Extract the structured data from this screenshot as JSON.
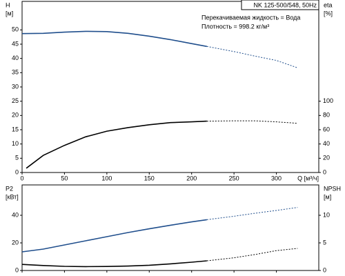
{
  "chart_data": [
    {
      "type": "line",
      "title": "NK 125-500/548, 50Hz",
      "annotations": [
        "Перекачиваемая жидкость = Вода",
        "Плотность = 998.2 кг/м³"
      ],
      "x_label": "Q [м³/ч]",
      "y_label": "H",
      "y_unit": "[м]",
      "y2_label": "eta",
      "y2_unit": "[%]",
      "xlim": [
        0,
        350
      ],
      "xticks": [
        0,
        50,
        100,
        150,
        200,
        250,
        300
      ],
      "ylim": [
        0,
        60
      ],
      "yticks": [
        0,
        5,
        10,
        15,
        20,
        25,
        30,
        35,
        40,
        45,
        50
      ],
      "y2lim": [
        0,
        240
      ],
      "y2ticks": [
        0,
        20,
        40,
        60,
        80,
        100
      ],
      "series": [
        {
          "color": "#1f4e8c",
          "dashed": false,
          "x": [
            0,
            25,
            50,
            75,
            100,
            125,
            150,
            175,
            200,
            218
          ],
          "values": [
            48.7,
            48.8,
            49.2,
            49.5,
            49.4,
            48.8,
            47.8,
            46.6,
            45.2,
            44.2
          ]
        },
        {
          "color": "#1f4e8c",
          "dashed": true,
          "x": [
            218,
            250,
            275,
            300,
            325
          ],
          "values": [
            44.2,
            42.4,
            40.8,
            39.3,
            36.7
          ]
        },
        {
          "axis": "y2",
          "color": "#000000",
          "dashed": false,
          "x": [
            5,
            25,
            50,
            75,
            100,
            125,
            150,
            175,
            200,
            218
          ],
          "values": [
            6,
            24,
            38,
            50,
            58,
            63,
            67,
            70,
            71,
            72
          ]
        },
        {
          "axis": "y2",
          "color": "#000000",
          "dashed": true,
          "x": [
            218,
            250,
            275,
            300,
            325
          ],
          "values": [
            72,
            72.5,
            72.5,
            71,
            69
          ]
        }
      ]
    },
    {
      "type": "line",
      "y_label": "P2",
      "y_unit": "[кВт]",
      "y2_label": "NPSH",
      "y2_unit": "[м]",
      "xlim": [
        0,
        350
      ],
      "xticks": [
        0,
        50,
        100,
        150,
        200,
        250,
        300
      ],
      "ylim": [
        0,
        62
      ],
      "yticks": [
        0,
        20,
        40
      ],
      "y2lim": [
        0,
        15.5
      ],
      "y2ticks": [
        0,
        5,
        10
      ],
      "series": [
        {
          "color": "#1f4e8c",
          "dashed": false,
          "x": [
            0,
            25,
            50,
            75,
            100,
            125,
            150,
            175,
            200,
            218
          ],
          "values": [
            13.5,
            15.5,
            18.5,
            21.5,
            24.5,
            27.5,
            30.2,
            32.8,
            35.2,
            36.8
          ]
        },
        {
          "color": "#1f4e8c",
          "dashed": true,
          "x": [
            218,
            250,
            275,
            300,
            325
          ],
          "values": [
            36.8,
            39.3,
            41.5,
            43.5,
            45.7
          ]
        },
        {
          "axis": "y2",
          "color": "#000000",
          "dashed": false,
          "x": [
            0,
            25,
            50,
            75,
            100,
            125,
            150,
            175,
            200,
            218
          ],
          "values": [
            1.1,
            0.9,
            0.75,
            0.7,
            0.72,
            0.8,
            0.95,
            1.2,
            1.5,
            1.75
          ]
        },
        {
          "axis": "y2",
          "color": "#000000",
          "dashed": true,
          "x": [
            218,
            250,
            275,
            300,
            325
          ],
          "values": [
            1.75,
            2.3,
            2.9,
            3.6,
            4.0
          ]
        }
      ]
    }
  ]
}
